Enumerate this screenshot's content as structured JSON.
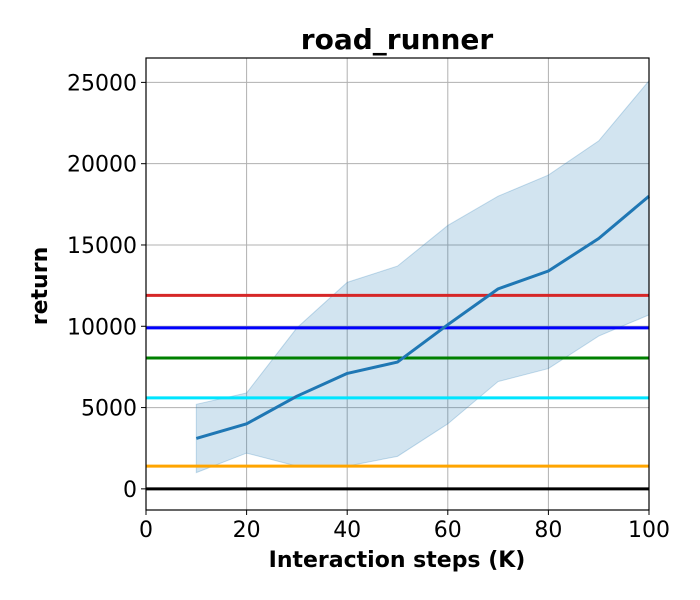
{
  "chart_data": {
    "type": "line",
    "title": "road_runner",
    "xlabel": "Interaction steps (K)",
    "ylabel": "return",
    "xlim": [
      0,
      100
    ],
    "ylim": [
      -1300,
      26500
    ],
    "xticks": [
      0,
      20,
      40,
      60,
      80,
      100
    ],
    "yticks": [
      0,
      5000,
      10000,
      15000,
      20000,
      25000
    ],
    "grid": true,
    "band": {
      "x": [
        10,
        20,
        30,
        40,
        50,
        60,
        70,
        80,
        90,
        100
      ],
      "upper": [
        5200,
        5900,
        9900,
        12700,
        13700,
        16200,
        18000,
        19300,
        21400,
        25100
      ],
      "lower": [
        1000,
        2200,
        1400,
        1400,
        2000,
        4000,
        6600,
        7400,
        9400,
        10700
      ],
      "color": "#1f77b4",
      "opacity": 0.2
    },
    "series": [
      {
        "x": [
          10,
          20,
          30,
          40,
          50,
          60,
          70,
          80,
          90,
          100
        ],
        "values": [
          3100,
          4000,
          5700,
          7100,
          7800,
          10100,
          12300,
          13400,
          15400,
          18000
        ],
        "color": "#1f77b4"
      }
    ],
    "hlines": [
      {
        "y": 11900,
        "color": "#d62728"
      },
      {
        "y": 9900,
        "color": "#0000ff"
      },
      {
        "y": 8050,
        "color": "#008000"
      },
      {
        "y": 5600,
        "color": "#00e5ff"
      },
      {
        "y": 1400,
        "color": "#ffa500"
      },
      {
        "y": 0,
        "color": "#000000"
      }
    ]
  }
}
